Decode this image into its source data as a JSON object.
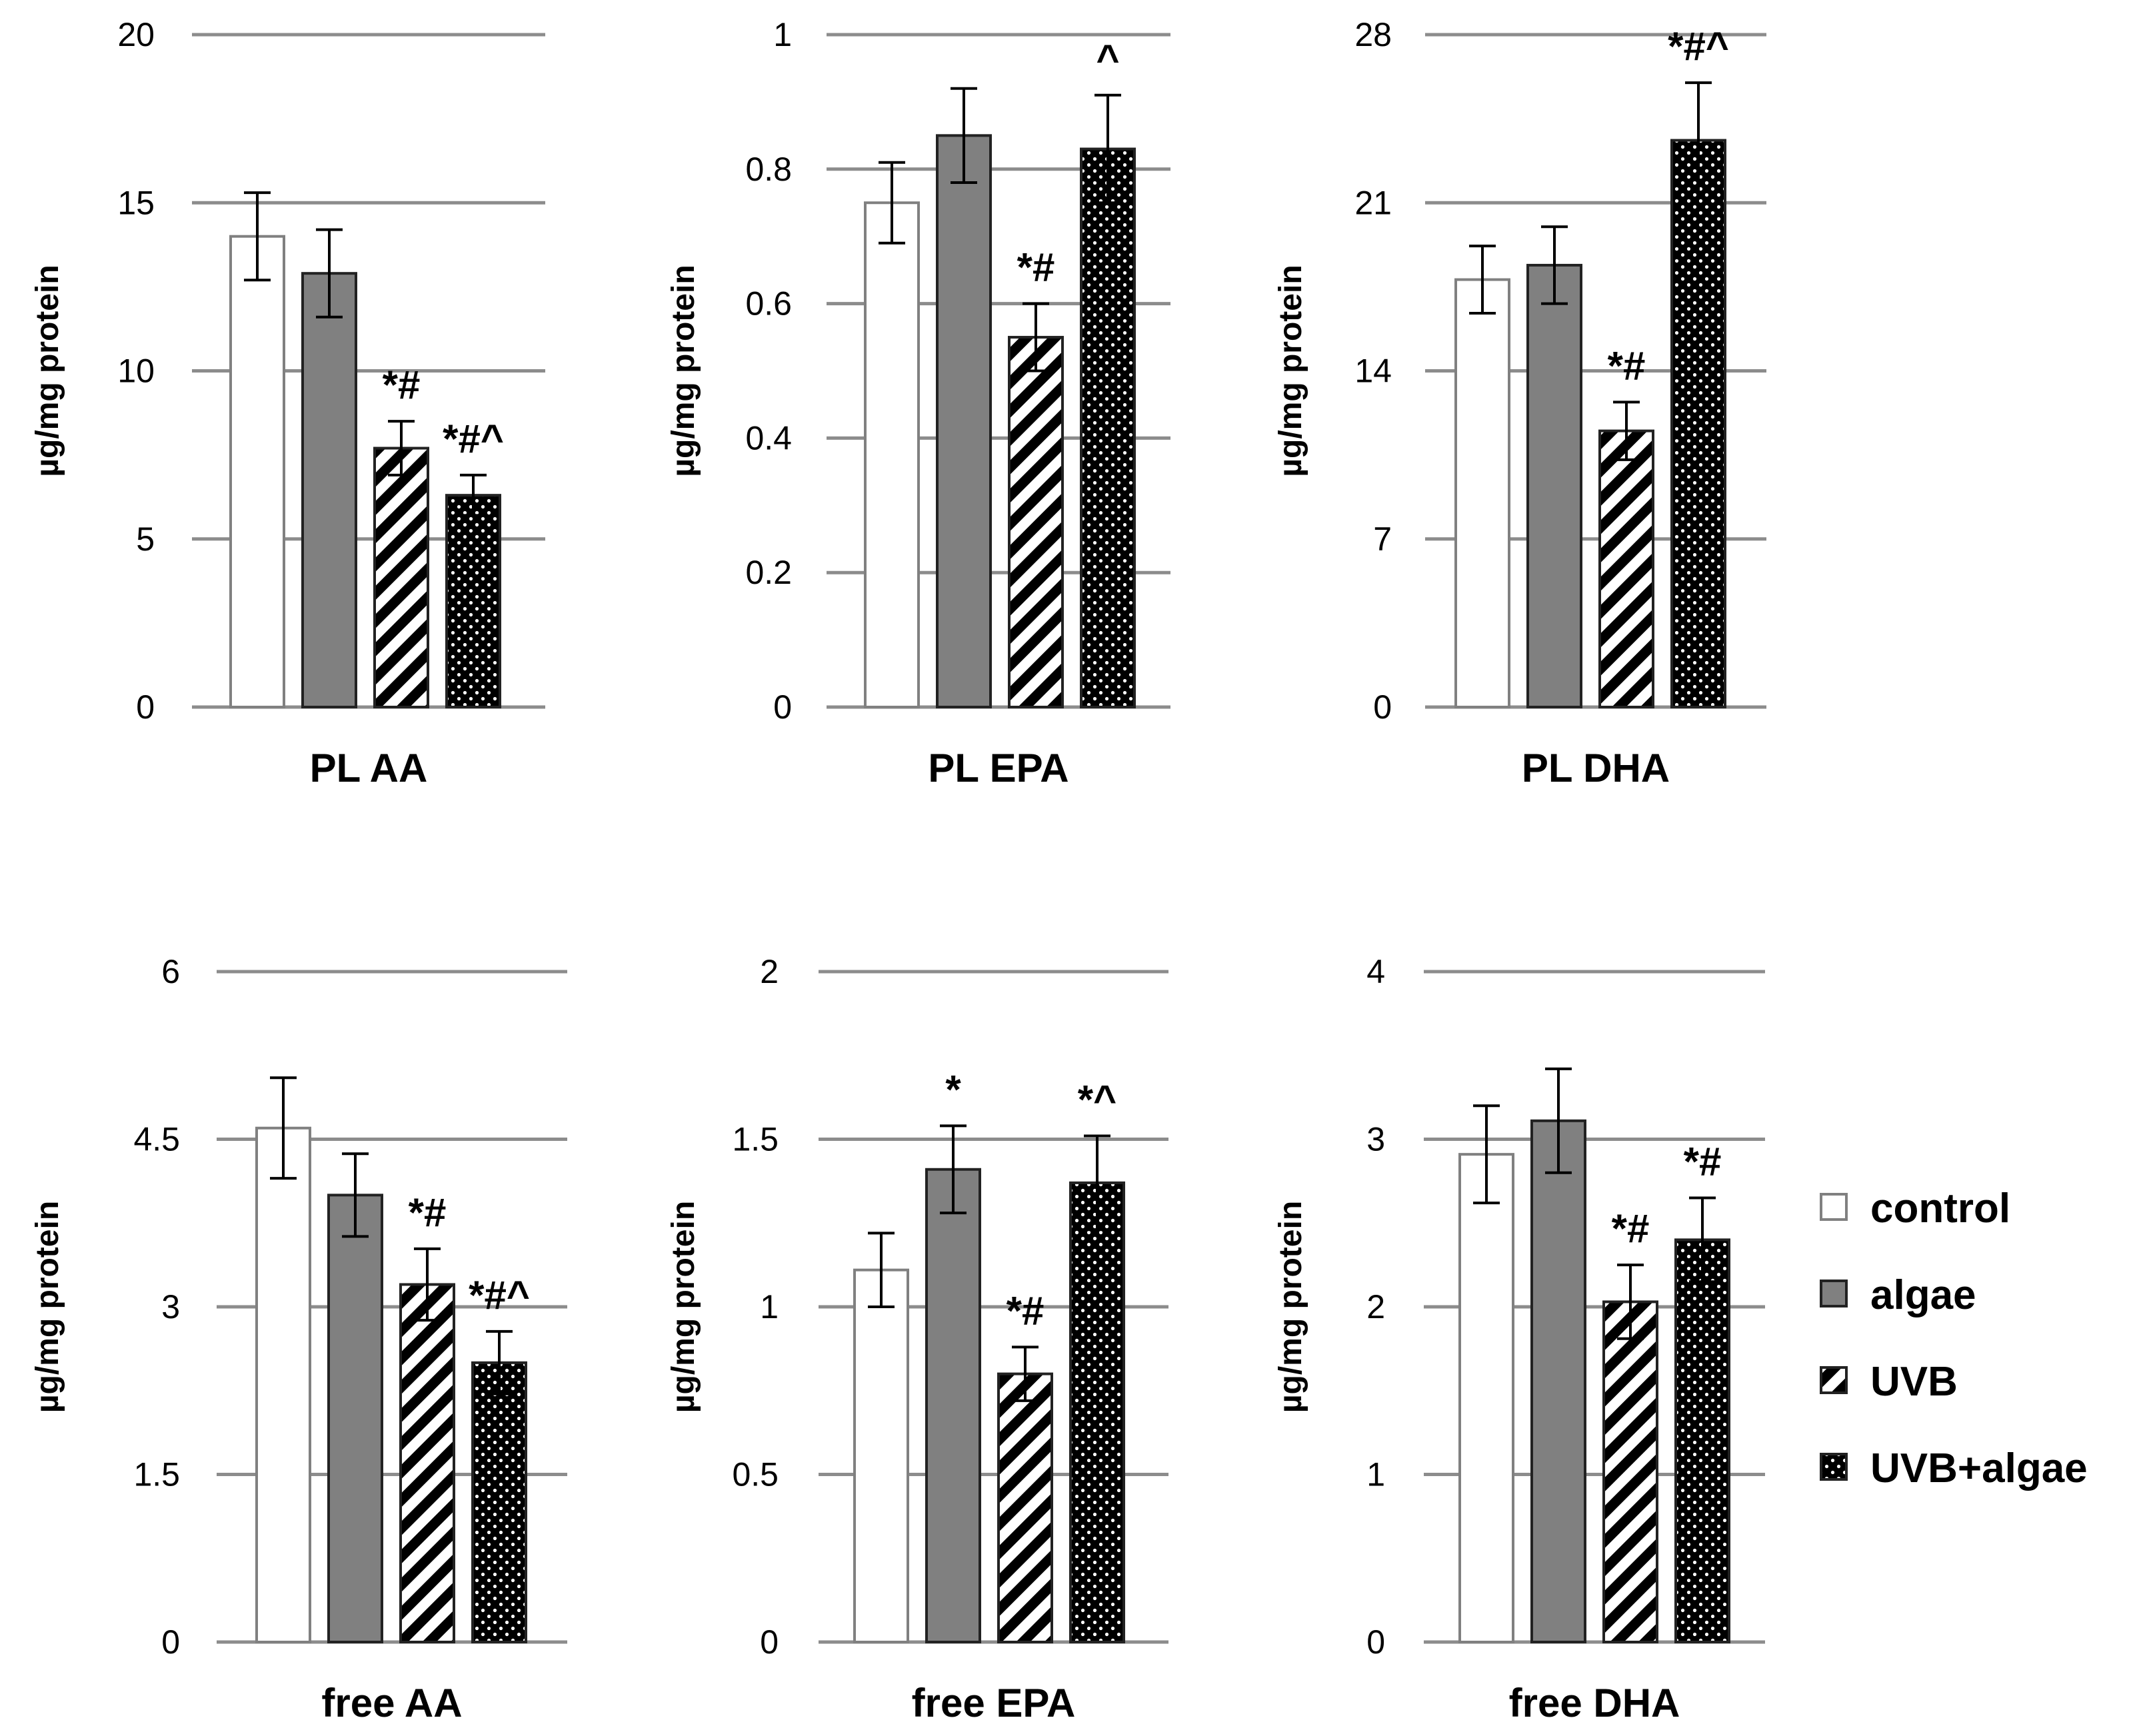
{
  "figure": {
    "ylabel": "µg/mg protein",
    "categories": [
      "control",
      "algae",
      "UVB",
      "UVB+algae"
    ]
  },
  "legend": {
    "items": [
      {
        "label": "control",
        "pattern": "white"
      },
      {
        "label": "algae",
        "pattern": "gray"
      },
      {
        "label": "UVB",
        "pattern": "stripes"
      },
      {
        "label": "UVB+algae",
        "pattern": "dots"
      }
    ]
  },
  "colors": {
    "grid": "#8c8c8c",
    "bar_border": "#808080",
    "algae_fill": "#808080",
    "dark_border": "#222222",
    "error_bar": "#000000"
  },
  "chart_data": [
    {
      "type": "bar",
      "title": "PL AA",
      "ylabel": "µg/mg protein",
      "ylim": [
        0,
        20
      ],
      "yticks": [
        0,
        5,
        10,
        15,
        20
      ],
      "ytick_labels": [
        "0",
        "5",
        "10",
        "15",
        "20"
      ],
      "categories": [
        "control",
        "algae",
        "UVB",
        "UVB+algae"
      ],
      "values": [
        14,
        12.9,
        7.7,
        6.3
      ],
      "errors": [
        1.3,
        1.3,
        0.8,
        0.6
      ],
      "annotations": [
        "",
        "",
        "*#",
        "*#^"
      ]
    },
    {
      "type": "bar",
      "title": "PL EPA",
      "ylabel": "µg/mg protein",
      "ylim": [
        0,
        1
      ],
      "yticks": [
        0,
        0.2,
        0.4,
        0.6,
        0.8,
        1
      ],
      "ytick_labels": [
        "0",
        "0.2",
        "0.4",
        "0.6",
        "0.8",
        "1"
      ],
      "categories": [
        "control",
        "algae",
        "UVB",
        "UVB+algae"
      ],
      "values": [
        0.75,
        0.85,
        0.55,
        0.83
      ],
      "errors": [
        0.06,
        0.07,
        0.05,
        0.08
      ],
      "annotations": [
        "",
        "",
        "*#",
        "^"
      ]
    },
    {
      "type": "bar",
      "title": "PL DHA",
      "ylabel": "µg/mg protein",
      "ylim": [
        0,
        28
      ],
      "yticks": [
        0,
        7,
        14,
        21,
        28
      ],
      "ytick_labels": [
        "0",
        "7",
        "14",
        "21",
        "28"
      ],
      "categories": [
        "control",
        "algae",
        "UVB",
        "UVB+algae"
      ],
      "values": [
        17.8,
        18.4,
        11.5,
        23.6
      ],
      "errors": [
        1.4,
        1.6,
        1.2,
        2.4
      ],
      "annotations": [
        "",
        "",
        "*#",
        "*#^"
      ]
    },
    {
      "type": "bar",
      "title": "free AA",
      "ylabel": "µg/mg protein",
      "ylim": [
        0,
        6
      ],
      "yticks": [
        0,
        1.5,
        3,
        4.5,
        6
      ],
      "ytick_labels": [
        "0",
        "1.5",
        "3",
        "4.5",
        "6"
      ],
      "categories": [
        "control",
        "algae",
        "UVB",
        "UVB+algae"
      ],
      "values": [
        4.6,
        4.0,
        3.2,
        2.5
      ],
      "errors": [
        0.45,
        0.37,
        0.32,
        0.28
      ],
      "annotations": [
        "",
        "",
        "*#",
        "*#^"
      ]
    },
    {
      "type": "bar",
      "title": "free EPA",
      "ylabel": "µg/mg protein",
      "ylim": [
        0,
        2
      ],
      "yticks": [
        0,
        0.5,
        1,
        1.5,
        2
      ],
      "ytick_labels": [
        "0",
        "0.5",
        "1",
        "1.5",
        "2"
      ],
      "categories": [
        "control",
        "algae",
        "UVB",
        "UVB+algae"
      ],
      "values": [
        1.11,
        1.41,
        0.8,
        1.37
      ],
      "errors": [
        0.11,
        0.13,
        0.08,
        0.14
      ],
      "annotations": [
        "",
        "*",
        "*#",
        "*^"
      ]
    },
    {
      "type": "bar",
      "title": "free DHA",
      "ylabel": "µg/mg protein",
      "ylim": [
        0,
        4
      ],
      "yticks": [
        0,
        1,
        2,
        3,
        4
      ],
      "ytick_labels": [
        "0",
        "1",
        "2",
        "3",
        "4"
      ],
      "categories": [
        "control",
        "algae",
        "UVB",
        "UVB+algae"
      ],
      "values": [
        2.91,
        3.11,
        2.03,
        2.4
      ],
      "errors": [
        0.29,
        0.31,
        0.22,
        0.25
      ],
      "annotations": [
        "",
        "",
        "*#",
        "*#"
      ]
    }
  ]
}
